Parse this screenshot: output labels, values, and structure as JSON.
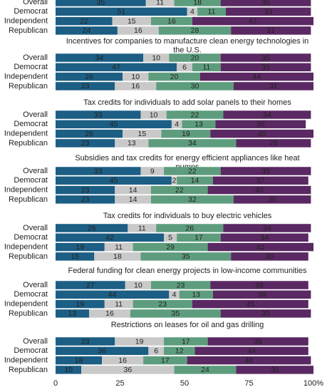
{
  "chart_data": [
    {
      "type": "bar",
      "stacked": true,
      "categories": [
        "Overall",
        "Democrat",
        "Independent",
        "Republican"
      ],
      "xlim": [
        0,
        100
      ],
      "series": [
        {
          "color": "#1c5e84",
          "values": [
            35,
            51,
            22,
            24
          ]
        },
        {
          "color": "#c9c9c9",
          "values": [
            11,
            4,
            15,
            16
          ]
        },
        {
          "color": "#5d9d7e",
          "values": [
            18,
            11,
            16,
            28
          ]
        },
        {
          "color": "#5a2862",
          "values": [
            35,
            33,
            47,
            31
          ]
        }
      ]
    },
    {
      "type": "bar",
      "stacked": true,
      "title": "Incentives for companies to manufacture clean energy technologies in the U.S.",
      "categories": [
        "Overall",
        "Democrat",
        "Independent",
        "Republican"
      ],
      "xlim": [
        0,
        100
      ],
      "series": [
        {
          "color": "#1c5e84",
          "values": [
            34,
            47,
            26,
            23
          ]
        },
        {
          "color": "#c9c9c9",
          "values": [
            10,
            6,
            10,
            16
          ]
        },
        {
          "color": "#5d9d7e",
          "values": [
            20,
            11,
            20,
            30
          ]
        },
        {
          "color": "#5a2862",
          "values": [
            35,
            35,
            44,
            31
          ]
        }
      ]
    },
    {
      "type": "bar",
      "stacked": true,
      "title": "Tax credits for individuals to add solar panels to their homes",
      "categories": [
        "Overall",
        "Democrat",
        "Independent",
        "Republican"
      ],
      "xlim": [
        0,
        100
      ],
      "series": [
        {
          "color": "#1c5e84",
          "values": [
            33,
            45,
            26,
            23
          ]
        },
        {
          "color": "#c9c9c9",
          "values": [
            10,
            4,
            15,
            13
          ]
        },
        {
          "color": "#5d9d7e",
          "values": [
            22,
            13,
            19,
            34
          ]
        },
        {
          "color": "#5a2862",
          "values": [
            34,
            35,
            40,
            29
          ]
        }
      ]
    },
    {
      "type": "bar",
      "stacked": true,
      "title": "Subsidies and tax credits for energy efficient appliances like heat pumps",
      "categories": [
        "Overall",
        "Democrat",
        "Independent",
        "Republican"
      ],
      "xlim": [
        0,
        100
      ],
      "series": [
        {
          "color": "#1c5e84",
          "values": [
            33,
            45,
            23,
            23
          ]
        },
        {
          "color": "#c9c9c9",
          "values": [
            9,
            2,
            14,
            14
          ]
        },
        {
          "color": "#5d9d7e",
          "values": [
            22,
            14,
            22,
            32
          ]
        },
        {
          "color": "#5a2862",
          "values": [
            35,
            37,
            40,
            30
          ]
        }
      ]
    },
    {
      "type": "bar",
      "stacked": true,
      "title": "Tax credits for individuals to buy electric vehicles",
      "categories": [
        "Overall",
        "Democrat",
        "Independent",
        "Republican"
      ],
      "xlim": [
        0,
        100
      ],
      "series": [
        {
          "color": "#1c5e84",
          "values": [
            28,
            42,
            19,
            15
          ]
        },
        {
          "color": "#c9c9c9",
          "values": [
            11,
            5,
            11,
            18
          ]
        },
        {
          "color": "#5d9d7e",
          "values": [
            26,
            17,
            29,
            35
          ]
        },
        {
          "color": "#5a2862",
          "values": [
            34,
            34,
            41,
            30
          ]
        }
      ]
    },
    {
      "type": "bar",
      "stacked": true,
      "title": "Federal funding for clean energy projects in low-income communities",
      "categories": [
        "Overall",
        "Democrat",
        "Independent",
        "Republican"
      ],
      "xlim": [
        0,
        100
      ],
      "series": [
        {
          "color": "#1c5e84",
          "values": [
            27,
            44,
            19,
            13
          ]
        },
        {
          "color": "#c9c9c9",
          "values": [
            10,
            4,
            11,
            16
          ]
        },
        {
          "color": "#5d9d7e",
          "values": [
            23,
            13,
            23,
            35
          ]
        },
        {
          "color": "#5a2862",
          "values": [
            38,
            38,
            45,
            35
          ]
        }
      ]
    },
    {
      "type": "bar",
      "stacked": true,
      "title": "Restrictions on leases for oil and gas drilling",
      "categories": [
        "Overall",
        "Democrat",
        "Independent",
        "Republican"
      ],
      "xlim": [
        0,
        100
      ],
      "xticks": [
        0,
        25,
        50,
        75,
        {
          "value": 100,
          "label": "100%"
        }
      ],
      "series": [
        {
          "color": "#1c5e84",
          "values": [
            23,
            36,
            18,
            10
          ]
        },
        {
          "color": "#c9c9c9",
          "values": [
            19,
            6,
            16,
            36
          ]
        },
        {
          "color": "#5d9d7e",
          "values": [
            17,
            12,
            17,
            24
          ]
        },
        {
          "color": "#5a2862",
          "values": [
            39,
            44,
            48,
            30
          ]
        }
      ]
    }
  ]
}
